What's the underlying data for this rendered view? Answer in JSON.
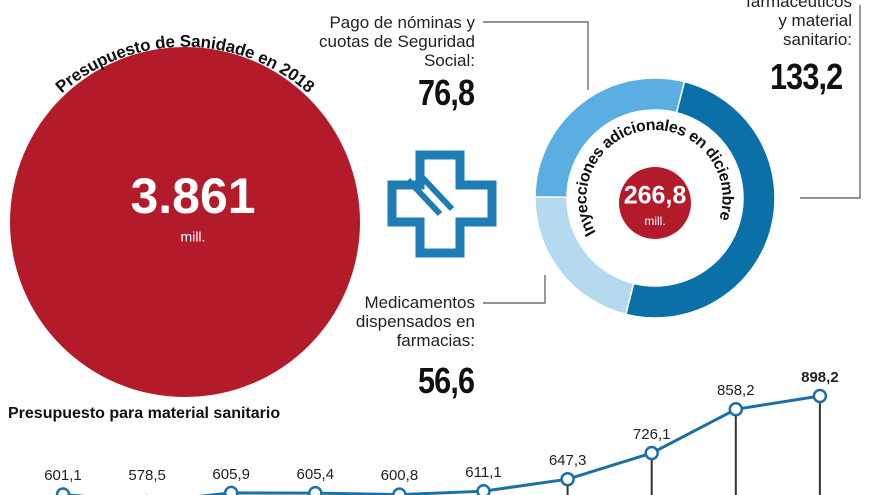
{
  "budget": {
    "title": "Presupuesto de Sanidade en 2018",
    "value": "3.861",
    "unit": "mill."
  },
  "chart_data": [
    {
      "type": "donut",
      "title": "Inyecciones adicionales en diciembre",
      "total": {
        "value": 266.8,
        "label": "266,8"
      },
      "unit": "mill.",
      "categories": [
        "Pago de nóminas y\ncuotas de Seguridad\nSocial:",
        "farmacéuticos\ny material\nsanitario:",
        "Medicamentos\ndispensados en\nfarmacias:"
      ],
      "values": [
        76.8,
        133.2,
        56.6
      ],
      "value_labels": [
        "76,8",
        "133,2",
        "56,6"
      ],
      "colors": [
        "#5aaee2",
        "#0b6fa8",
        "#b5daf0"
      ]
    },
    {
      "type": "line",
      "title": "Presupuesto para material sanitario",
      "values": [
        601.1,
        578.5,
        605.9,
        605.4,
        600.8,
        611.1,
        647.3,
        726.1,
        858.2,
        898.2
      ],
      "value_labels": [
        "601,1",
        "578,5",
        "605,9",
        "605,4",
        "600,8",
        "611,1",
        "647,3",
        "726,1",
        "858,2",
        "898,2"
      ],
      "color": "#1e6fa5"
    }
  ]
}
